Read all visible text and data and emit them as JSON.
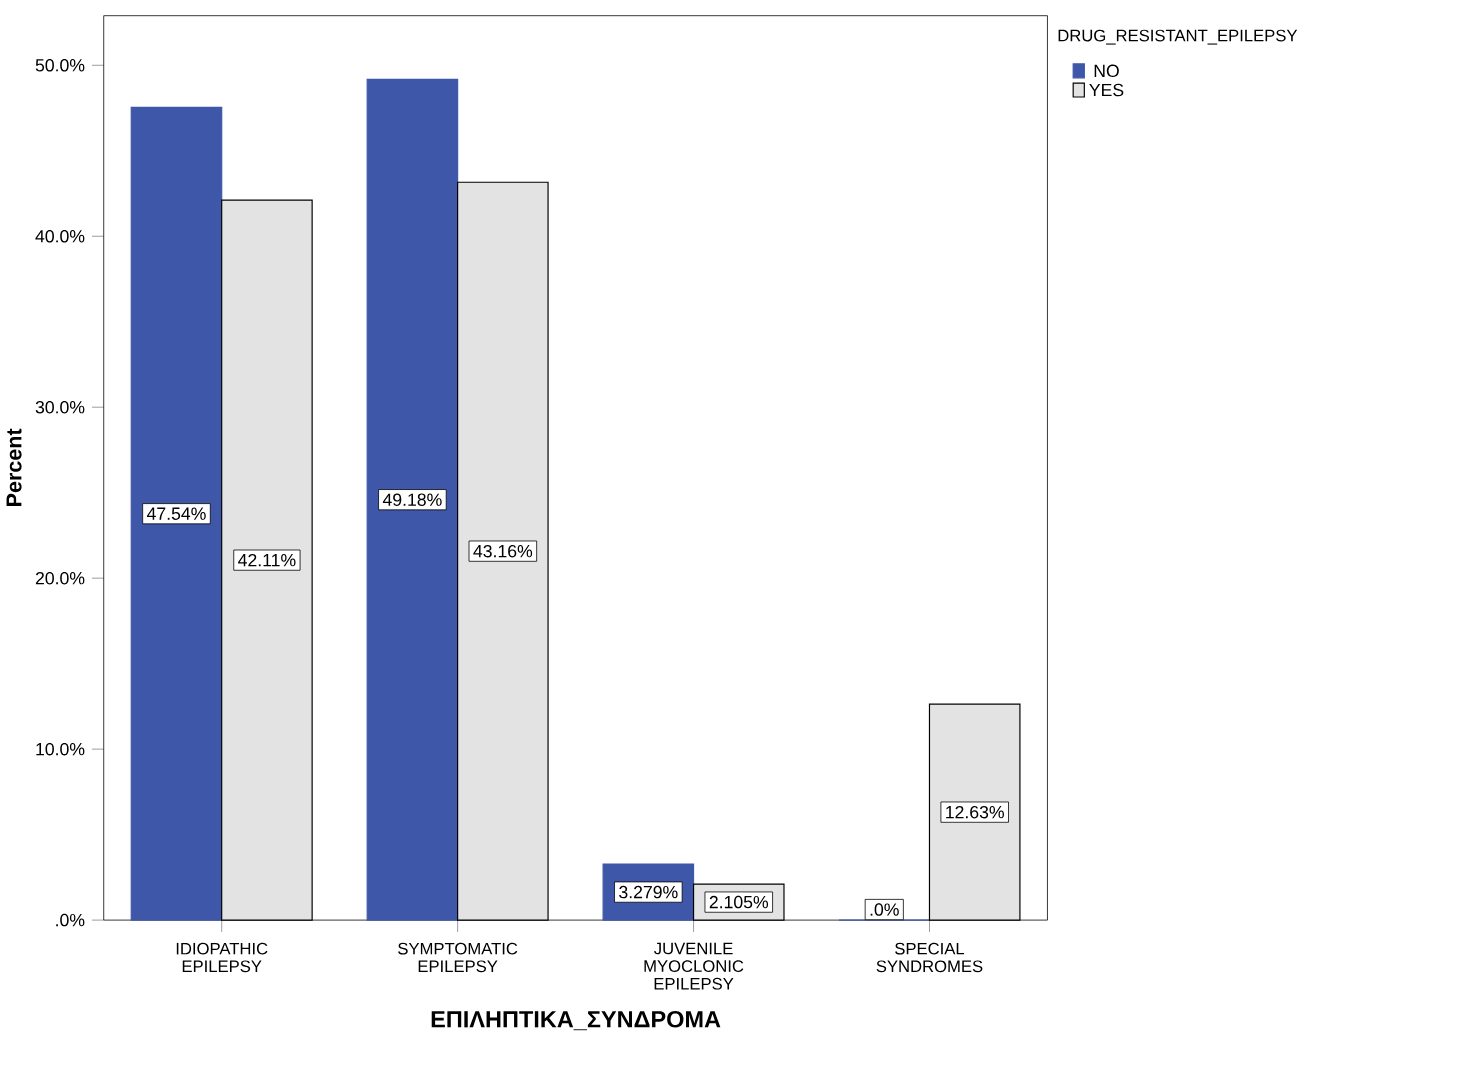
{
  "chart_data": {
    "type": "bar",
    "xlabel": "ΕΠΙΛΗΠΤΙΚΑ_ΣΥΝΔΡΟΜΑ",
    "ylabel": "Percent",
    "legend_title": "DRUG_RESISTANT_EPILEPSY",
    "categories": [
      "IDIOPATHIC EPILEPSY",
      "SYMPTOMATIC EPILEPSY",
      "JUVENILE MYOCLONIC EPILEPSY",
      "SPECIAL SYNDROMES"
    ],
    "series": [
      {
        "name": "NO",
        "color": "#3f57a8",
        "values": [
          47.54,
          49.18,
          3.279,
          0
        ],
        "value_labels": [
          "47.54%",
          "49.18%",
          "3.279%",
          ".0%"
        ]
      },
      {
        "name": "YES",
        "color": "#e3e3e3",
        "values": [
          42.11,
          43.16,
          2.105,
          12.63
        ],
        "value_labels": [
          "42.11%",
          "43.16%",
          "2.105%",
          "12.63%"
        ]
      }
    ],
    "ylim": [
      0,
      52.9
    ],
    "yticks": [
      {
        "value": 0,
        "label": ".0%"
      },
      {
        "value": 10,
        "label": "10.0%"
      },
      {
        "value": 20,
        "label": "20.0%"
      },
      {
        "value": 30,
        "label": "30.0%"
      },
      {
        "value": 40,
        "label": "40.0%"
      },
      {
        "value": 50,
        "label": "50.0%"
      }
    ],
    "grid": false,
    "legend": "top right"
  }
}
